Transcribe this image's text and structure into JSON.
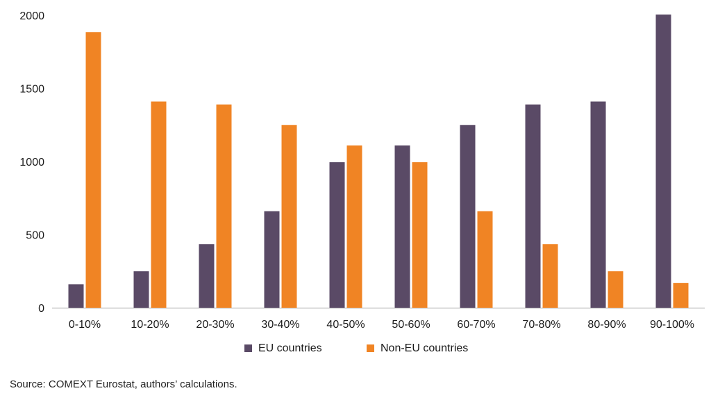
{
  "chart_data": {
    "type": "bar",
    "title": "",
    "xlabel": "",
    "ylabel": "",
    "ylim": [
      0,
      2000
    ],
    "yticks": [
      0,
      500,
      1000,
      1500,
      2000
    ],
    "categories": [
      "0-10%",
      "10-20%",
      "20-30%",
      "30-40%",
      "40-50%",
      "50-60%",
      "60-70%",
      "70-80%",
      "80-90%",
      "90-100%"
    ],
    "series": [
      {
        "name": "EU countries",
        "color": "#5a4a66",
        "values": [
          160,
          250,
          435,
          660,
          995,
          1110,
          1250,
          1390,
          1410,
          2005
        ]
      },
      {
        "name": "Non-EU countries",
        "color": "#f08424",
        "values": [
          1885,
          1410,
          1390,
          1250,
          1110,
          995,
          660,
          435,
          250,
          170
        ]
      }
    ],
    "grid": false,
    "legend_position": "bottom"
  },
  "source_note": "Source: COMEXT Eurostat, authors’ calculations."
}
